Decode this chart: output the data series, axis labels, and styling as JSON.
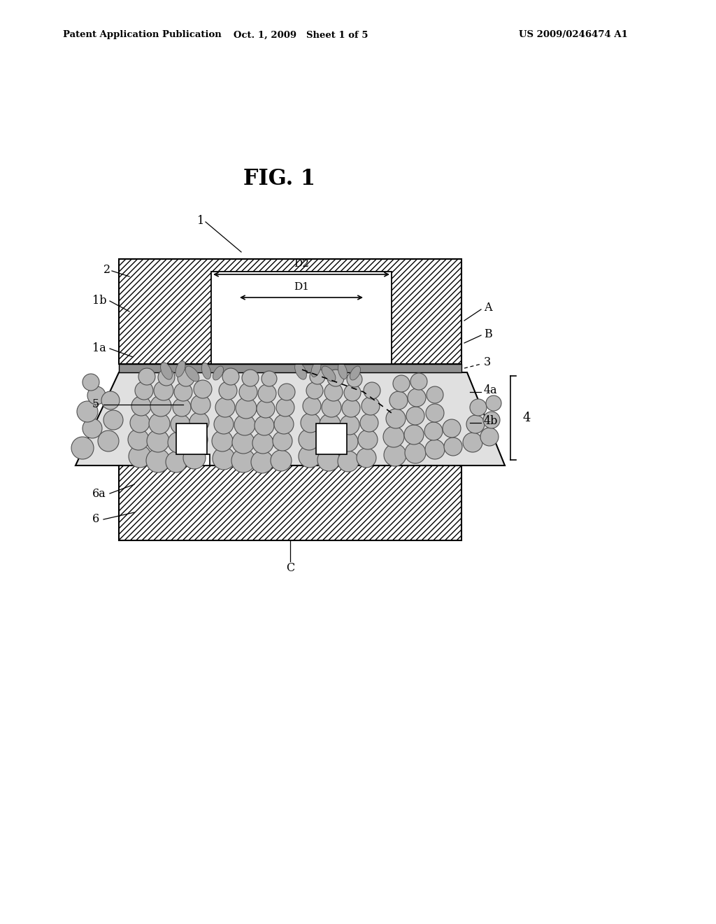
{
  "header_left": "Patent Application Publication",
  "header_mid": "Oct. 1, 2009   Sheet 1 of 5",
  "header_right": "US 2009/0246474 A1",
  "fig_title": "FIG. 1",
  "bg_color": "#ffffff",
  "hatch_dense": "////",
  "gray_circle": "#b8b8b8",
  "gray_circle_edge": "#505050",
  "paste_fill": "#e0e0e0",
  "thin_layer_fill": "#909090",
  "component_fill": "#ffffff",
  "board_fill": "#ffffff",
  "circles": [
    [
      118,
      680,
      16
    ],
    [
      132,
      708,
      14
    ],
    [
      125,
      732,
      15
    ],
    [
      138,
      755,
      13
    ],
    [
      130,
      774,
      12
    ],
    [
      155,
      690,
      15
    ],
    [
      162,
      720,
      14
    ],
    [
      158,
      748,
      13
    ],
    [
      200,
      668,
      16
    ],
    [
      226,
      662,
      17
    ],
    [
      252,
      660,
      15
    ],
    [
      278,
      666,
      16
    ],
    [
      198,
      692,
      15
    ],
    [
      226,
      690,
      16
    ],
    [
      255,
      688,
      15
    ],
    [
      282,
      692,
      15
    ],
    [
      200,
      716,
      14
    ],
    [
      228,
      715,
      15
    ],
    [
      258,
      714,
      14
    ],
    [
      285,
      717,
      14
    ],
    [
      202,
      740,
      14
    ],
    [
      230,
      740,
      15
    ],
    [
      260,
      738,
      13
    ],
    [
      287,
      742,
      14
    ],
    [
      206,
      762,
      13
    ],
    [
      234,
      762,
      14
    ],
    [
      262,
      760,
      13
    ],
    [
      290,
      764,
      13
    ],
    [
      210,
      782,
      12
    ],
    [
      238,
      781,
      12
    ],
    [
      266,
      780,
      12
    ],
    [
      320,
      665,
      16
    ],
    [
      348,
      662,
      17
    ],
    [
      375,
      660,
      16
    ],
    [
      402,
      662,
      15
    ],
    [
      318,
      690,
      15
    ],
    [
      348,
      688,
      16
    ],
    [
      376,
      687,
      15
    ],
    [
      404,
      690,
      14
    ],
    [
      320,
      714,
      14
    ],
    [
      350,
      713,
      15
    ],
    [
      378,
      712,
      14
    ],
    [
      406,
      714,
      14
    ],
    [
      322,
      738,
      14
    ],
    [
      352,
      737,
      15
    ],
    [
      380,
      736,
      13
    ],
    [
      408,
      738,
      13
    ],
    [
      326,
      762,
      13
    ],
    [
      355,
      760,
      13
    ],
    [
      382,
      758,
      13
    ],
    [
      410,
      760,
      12
    ],
    [
      330,
      782,
      12
    ],
    [
      358,
      780,
      12
    ],
    [
      385,
      779,
      11
    ],
    [
      443,
      668,
      16
    ],
    [
      470,
      663,
      16
    ],
    [
      498,
      661,
      15
    ],
    [
      524,
      666,
      14
    ],
    [
      442,
      692,
      15
    ],
    [
      470,
      690,
      15
    ],
    [
      498,
      689,
      14
    ],
    [
      526,
      692,
      14
    ],
    [
      444,
      716,
      14
    ],
    [
      472,
      714,
      15
    ],
    [
      500,
      713,
      14
    ],
    [
      528,
      716,
      13
    ],
    [
      446,
      740,
      13
    ],
    [
      474,
      738,
      14
    ],
    [
      502,
      737,
      13
    ],
    [
      530,
      740,
      13
    ],
    [
      450,
      762,
      12
    ],
    [
      477,
      760,
      13
    ],
    [
      504,
      759,
      12
    ],
    [
      532,
      762,
      12
    ],
    [
      454,
      782,
      11
    ],
    [
      480,
      780,
      12
    ],
    [
      507,
      778,
      11
    ],
    [
      565,
      670,
      16
    ],
    [
      594,
      673,
      15
    ],
    [
      622,
      678,
      14
    ],
    [
      648,
      682,
      13
    ],
    [
      563,
      696,
      15
    ],
    [
      592,
      699,
      14
    ],
    [
      620,
      704,
      13
    ],
    [
      646,
      708,
      13
    ],
    [
      566,
      722,
      14
    ],
    [
      594,
      726,
      13
    ],
    [
      622,
      730,
      13
    ],
    [
      570,
      748,
      13
    ],
    [
      596,
      752,
      13
    ],
    [
      622,
      756,
      12
    ],
    [
      574,
      772,
      12
    ],
    [
      599,
      775,
      12
    ],
    [
      676,
      688,
      14
    ],
    [
      700,
      696,
      13
    ],
    [
      680,
      714,
      13
    ],
    [
      703,
      720,
      12
    ],
    [
      684,
      738,
      12
    ],
    [
      706,
      744,
      11
    ]
  ],
  "ellipses": [
    [
      238,
      790,
      7,
      13,
      25
    ],
    [
      258,
      793,
      6,
      12,
      -20
    ],
    [
      275,
      786,
      7,
      13,
      40
    ],
    [
      295,
      790,
      6,
      12,
      15
    ],
    [
      312,
      787,
      6,
      11,
      -30
    ],
    [
      430,
      790,
      7,
      13,
      25
    ],
    [
      452,
      793,
      6,
      12,
      -20
    ],
    [
      470,
      786,
      7,
      13,
      40
    ],
    [
      490,
      790,
      6,
      12,
      15
    ],
    [
      508,
      787,
      6,
      11,
      -30
    ]
  ]
}
